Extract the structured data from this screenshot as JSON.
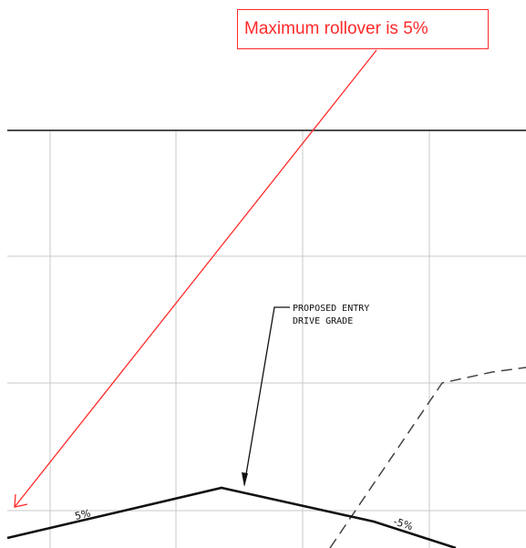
{
  "callout": {
    "text": "Maximum rollover is 5%"
  },
  "leader_note": {
    "line1": "PROPOSED ENTRY",
    "line2": "DRIVE GRADE"
  },
  "grade_labels": {
    "left": "5%",
    "right": "-5%"
  },
  "colors": {
    "callout": "#ff2a2a",
    "linework": "#111111",
    "grid": "#c8c8c8"
  }
}
